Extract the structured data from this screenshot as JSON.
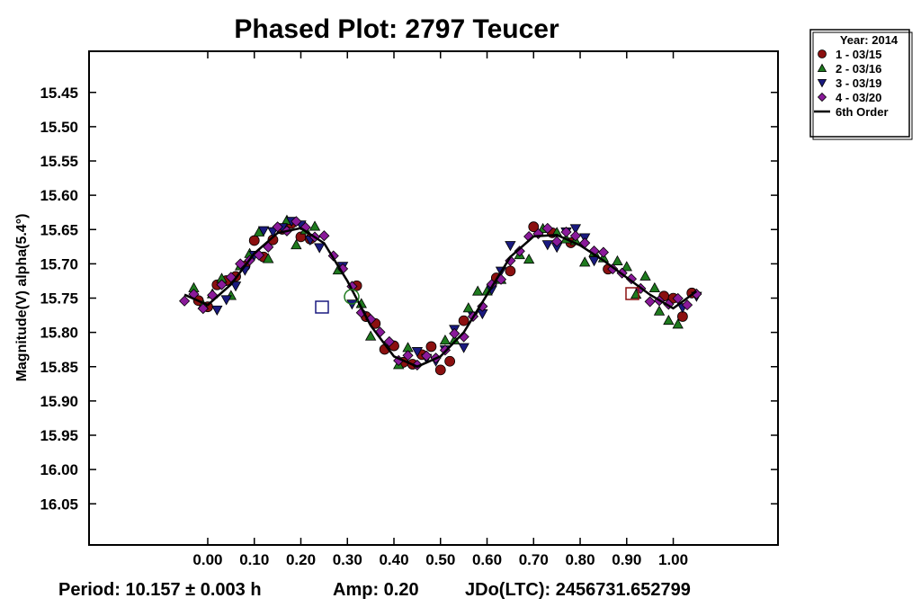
{
  "chart_data": {
    "type": "scatter",
    "title": "Phased Plot: 2797 Teucer",
    "ylabel": "Magnitude(V) alpha(5.4°)",
    "xlabel": "",
    "x_ticks": [
      "0.00",
      "0.10",
      "0.20",
      "0.30",
      "0.40",
      "0.50",
      "0.60",
      "0.70",
      "0.80",
      "0.90",
      "1.00"
    ],
    "y_ticks": [
      "15.45",
      "15.50",
      "15.55",
      "15.60",
      "15.65",
      "15.70",
      "15.75",
      "15.80",
      "15.85",
      "15.90",
      "15.95",
      "16.00",
      "16.05"
    ],
    "xlim": [
      -0.255,
      1.225
    ],
    "ylim": [
      15.39,
      16.11
    ],
    "y_inverted": true,
    "grid": false,
    "legend_position": "outside-top-right",
    "legend_title": "Year: 2014",
    "series": [
      {
        "name": "1 - 03/15",
        "marker": "circle",
        "color": "#8b1010",
        "phases": [
          -0.02,
          0.0,
          0.02,
          0.04,
          0.06,
          0.08,
          0.1,
          0.12,
          0.14,
          0.16,
          0.18,
          0.2,
          0.22,
          0.32,
          0.34,
          0.36,
          0.38,
          0.4,
          0.42,
          0.44,
          0.46,
          0.48,
          0.5,
          0.52,
          0.55,
          0.62,
          0.65,
          0.7,
          0.74,
          0.78,
          0.86,
          0.98,
          1.0,
          1.02,
          1.04
        ]
      },
      {
        "name": "2 - 03/16",
        "marker": "triangle-up",
        "color": "#1e7a1e",
        "phases": [
          -0.03,
          -0.01,
          0.01,
          0.03,
          0.05,
          0.07,
          0.09,
          0.11,
          0.13,
          0.17,
          0.19,
          0.21,
          0.23,
          0.28,
          0.33,
          0.35,
          0.41,
          0.43,
          0.51,
          0.53,
          0.56,
          0.58,
          0.6,
          0.63,
          0.67,
          0.69,
          0.72,
          0.75,
          0.77,
          0.79,
          0.81,
          0.83,
          0.85,
          0.88,
          0.9,
          0.92,
          0.94,
          0.96,
          0.97,
          0.99,
          1.01
        ]
      },
      {
        "name": "3 - 03/19",
        "marker": "triangle-down",
        "color": "#1a1a80",
        "phases": [
          0.02,
          0.04,
          0.06,
          0.08,
          0.1,
          0.12,
          0.14,
          0.16,
          0.18,
          0.2,
          0.22,
          0.24,
          0.29,
          0.31,
          0.45,
          0.47,
          0.49,
          0.51,
          0.53,
          0.55,
          0.57,
          0.59,
          0.61,
          0.63,
          0.65,
          0.73,
          0.75,
          0.77,
          0.79,
          0.81,
          0.83,
          1.02,
          1.05
        ]
      },
      {
        "name": "4 - 03/20",
        "marker": "diamond",
        "color": "#8a1a9a",
        "phases": [
          -0.05,
          -0.03,
          -0.01,
          0.01,
          0.03,
          0.05,
          0.07,
          0.09,
          0.11,
          0.13,
          0.15,
          0.17,
          0.19,
          0.21,
          0.23,
          0.25,
          0.27,
          0.29,
          0.31,
          0.33,
          0.35,
          0.37,
          0.39,
          0.41,
          0.43,
          0.45,
          0.47,
          0.49,
          0.51,
          0.53,
          0.55,
          0.57,
          0.59,
          0.61,
          0.63,
          0.65,
          0.67,
          0.69,
          0.71,
          0.73,
          0.75,
          0.77,
          0.79,
          0.81,
          0.83,
          0.85,
          0.87,
          0.89,
          0.91,
          0.93,
          0.95,
          0.97,
          0.99,
          1.01,
          1.03,
          1.05
        ]
      }
    ],
    "fit": {
      "name": "6th Order",
      "color": "#000000",
      "x": [
        -0.05,
        0.0,
        0.05,
        0.1,
        0.15,
        0.2,
        0.25,
        0.3,
        0.35,
        0.4,
        0.45,
        0.5,
        0.55,
        0.6,
        0.65,
        0.7,
        0.75,
        0.8,
        0.85,
        0.9,
        0.95,
        1.0,
        1.05
      ],
      "y": [
        15.745,
        15.76,
        15.73,
        15.685,
        15.655,
        15.648,
        15.67,
        15.725,
        15.79,
        15.835,
        15.85,
        15.835,
        15.8,
        15.745,
        15.69,
        15.66,
        15.658,
        15.673,
        15.695,
        15.72,
        15.745,
        15.765,
        15.74
      ]
    }
  },
  "footer": {
    "period": "Period: 10.157 ± 0.003 h",
    "amp": "Amp: 0.20",
    "jdo": "JDo(LTC): 2456731.652799"
  }
}
